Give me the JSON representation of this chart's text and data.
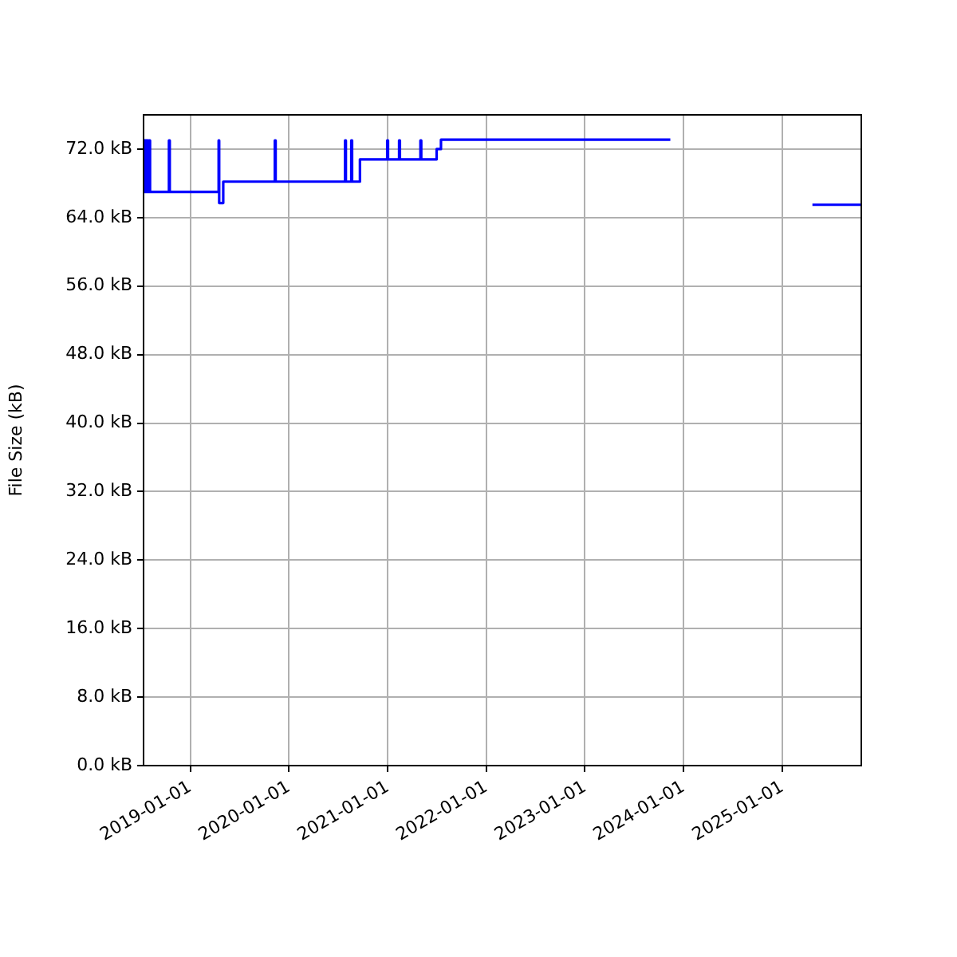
{
  "chart_data": {
    "type": "step",
    "ylabel": "File Size (kB)",
    "x": [
      "2018-07-12",
      "2018-07-15",
      "2018-07-18",
      "2018-07-22",
      "2018-07-25",
      "2018-07-29",
      "2018-08-02",
      "2018-08-05",
      "2018-10-14",
      "2018-10-17",
      "2019-04-16",
      "2019-04-18",
      "2019-05-03",
      "2019-11-10",
      "2019-11-13",
      "2020-07-27",
      "2020-07-30",
      "2020-08-19",
      "2020-08-22",
      "2020-09-20",
      "2020-12-30",
      "2021-01-02",
      "2021-02-12",
      "2021-02-15",
      "2021-05-02",
      "2021-05-05",
      "2021-07-01",
      "2021-07-17",
      "2023-11-13",
      "2023-11-14",
      "2025-04-22",
      "2025-10-20"
    ],
    "series": [
      {
        "color": "#0000ff",
        "values": [
          73.0,
          67.0,
          73.0,
          67.0,
          73.0,
          67.0,
          73.0,
          67.0,
          73.0,
          67.0,
          73.0,
          65.7,
          68.2,
          73.0,
          68.2,
          73.0,
          68.2,
          73.0,
          68.2,
          70.8,
          73.0,
          70.8,
          73.0,
          70.8,
          73.0,
          70.8,
          72.0,
          73.1,
          73.1,
          null,
          65.5,
          65.5
        ]
      }
    ],
    "xlim": [
      "2018-07-12",
      "2025-10-20"
    ],
    "xticks": [
      "2019-01-01",
      "2020-01-01",
      "2021-01-01",
      "2022-01-01",
      "2023-01-01",
      "2024-01-01",
      "2025-01-01"
    ],
    "ylim": [
      0,
      76
    ],
    "yticks": [
      {
        "value": 0,
        "label": "0.0 kB"
      },
      {
        "value": 8,
        "label": "8.0 kB"
      },
      {
        "value": 16,
        "label": "16.0 kB"
      },
      {
        "value": 24,
        "label": "24.0 kB"
      },
      {
        "value": 32,
        "label": "32.0 kB"
      },
      {
        "value": 40,
        "label": "40.0 kB"
      },
      {
        "value": 48,
        "label": "48.0 kB"
      },
      {
        "value": 56,
        "label": "56.0 kB"
      },
      {
        "value": 64,
        "label": "64.0 kB"
      },
      {
        "value": 72,
        "label": "72.0 kB"
      }
    ],
    "grid": true,
    "legend": false,
    "line_style": "solid",
    "marker": "none"
  }
}
